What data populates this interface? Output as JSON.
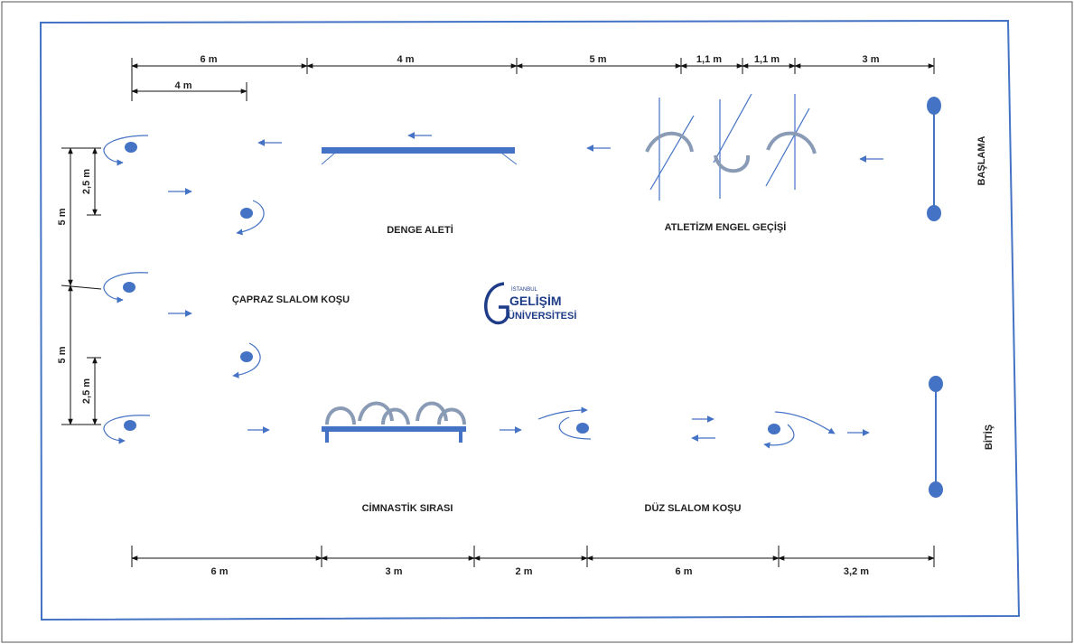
{
  "stations": {
    "balance_beam": "DENGE ALETİ",
    "hurdles": "ATLETİZM ENGEL GEÇİŞİ",
    "diagonal_slalom": "ÇAPRAZ SLALOM KOŞU",
    "gym_bench": "CİMNASTİK SIRASI",
    "straight_slalom": "DÜZ SLALOM KOŞU",
    "start": "BAŞLAMA",
    "finish": "BİTİŞ"
  },
  "logo": {
    "line1": "İSTANBUL",
    "line2": "GELİŞİM",
    "line3": "ÜNİVERSİTESİ"
  },
  "dimensions": {
    "top": [
      "6 m",
      "4 m",
      "5 m",
      "1,1 m",
      "1,1 m",
      "3 m"
    ],
    "top_sub": "4 m",
    "left_outer": [
      "5 m",
      "5 m"
    ],
    "left_inner": [
      "2,5 m",
      "2,5 m"
    ],
    "bottom": [
      "6 m",
      "3 m",
      "2 m",
      "6 m",
      "3,2 m"
    ]
  },
  "colors": {
    "accent": "#4472c4",
    "cone": "#4472c4",
    "frame_outer": "#4472c4",
    "text": "#222222"
  }
}
